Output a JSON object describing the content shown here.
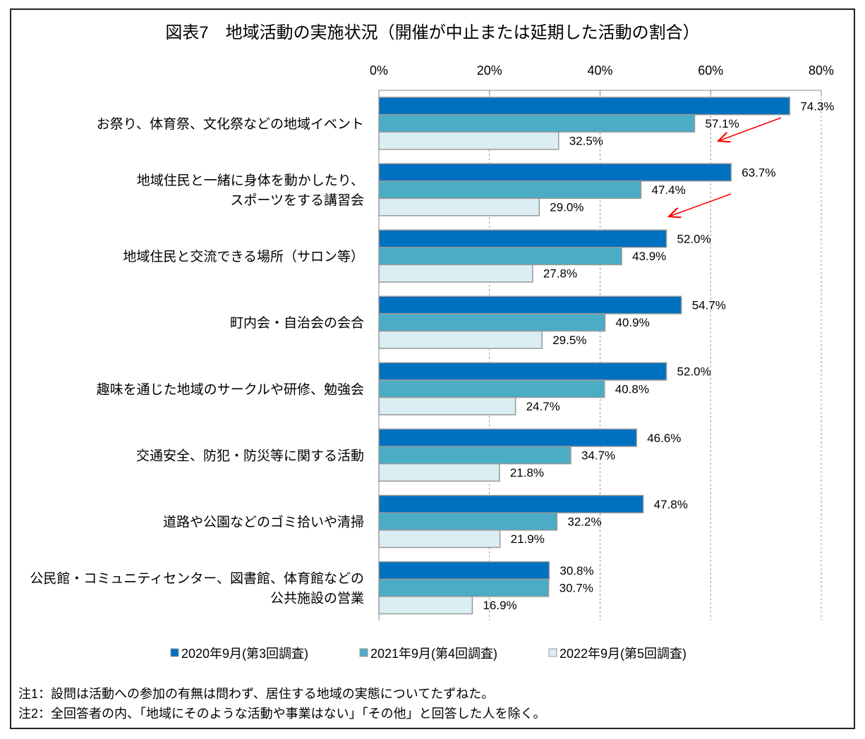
{
  "chart_data": {
    "type": "bar",
    "orientation": "horizontal",
    "title": "図表7　地域活動の実施状況（開催が中止または延期した活動の割合）",
    "xlabel": "",
    "ylabel": "",
    "xlim": [
      0,
      80
    ],
    "ticks": [
      0,
      20,
      40,
      60,
      80
    ],
    "tick_labels": [
      "0%",
      "20%",
      "40%",
      "60%",
      "80%"
    ],
    "grid": "vertical dashed",
    "legend_position": "bottom",
    "categories": [
      [
        "お祭り、体育祭、文化祭などの地域イベント"
      ],
      [
        "地域住民と一緒に身体を動かしたり、",
        "スポーツをする講習会"
      ],
      [
        "地域住民と交流できる場所（サロン等）"
      ],
      [
        "町内会・自治会の会合"
      ],
      [
        "趣味を通じた地域のサークルや研修、勉強会"
      ],
      [
        "交通安全、防犯・防災等に関する活動"
      ],
      [
        "道路や公園などのゴミ拾いや清掃"
      ],
      [
        "公民館・コミュニティセンター、図書館、体育館などの",
        "公共施設の営業"
      ]
    ],
    "series": [
      {
        "name": "2020年9月(第3回調査)",
        "color": "#0070C0",
        "values": [
          74.3,
          63.7,
          52.0,
          54.7,
          52.0,
          46.6,
          47.8,
          30.8
        ]
      },
      {
        "name": "2021年9月(第4回調査)",
        "color": "#4BACC6",
        "values": [
          57.1,
          47.4,
          43.9,
          40.9,
          40.8,
          34.7,
          32.2,
          30.7
        ]
      },
      {
        "name": "2022年9月(第5回調査)",
        "color": "#DAEEF3",
        "values": [
          32.5,
          29.0,
          27.8,
          29.5,
          24.7,
          21.8,
          21.9,
          16.9
        ]
      }
    ],
    "annotations": [
      {
        "type": "arrow",
        "color": "#FF0000",
        "category_index": 0
      },
      {
        "type": "arrow",
        "color": "#FF0000",
        "category_index": 1
      }
    ]
  },
  "notes": [
    "注1：設問は活動への参加の有無は問わず、居住する地域の実態についてたずねた。",
    "注2：全回答者の内、「地域にそのような活動や事業はない」「その他」と回答した人を除く。"
  ]
}
